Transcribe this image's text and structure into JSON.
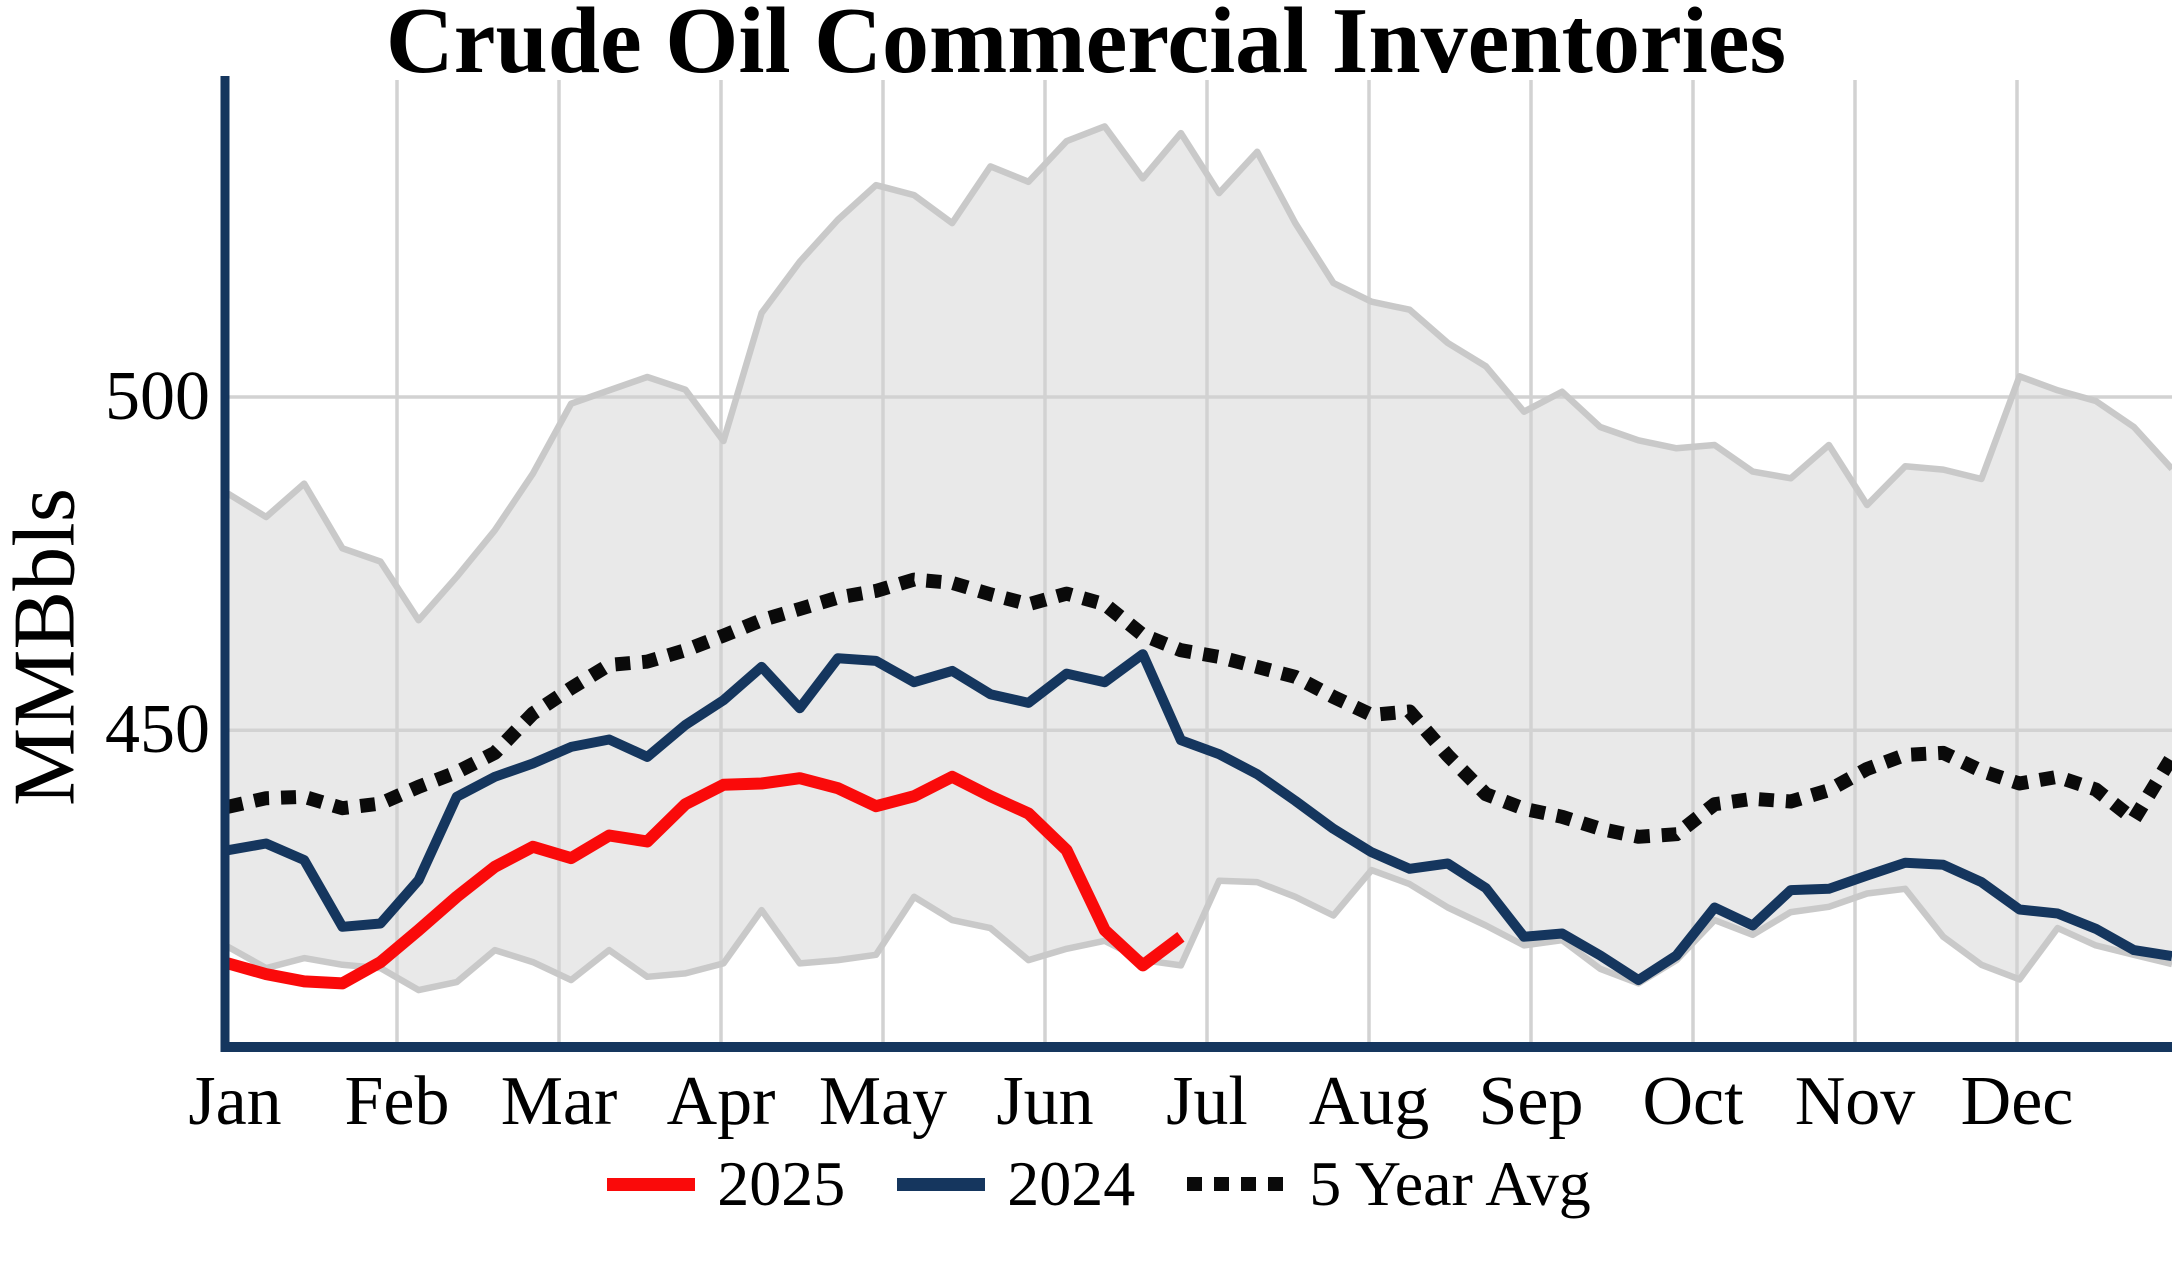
{
  "chart_data": {
    "type": "line",
    "title": "Crude Oil Commercial Inventories",
    "ylabel": "MMBbls",
    "x_unit": "weekly values, Jan through Dec",
    "x_tick_labels": [
      "Jan",
      "Feb",
      "Mar",
      "Apr",
      "May",
      "Jun",
      "Jul",
      "Aug",
      "Sep",
      "Oct",
      "Nov",
      "Dec"
    ],
    "y_ticks": [
      450,
      500
    ],
    "ylim": [
      402,
      548
    ],
    "grid": "vertical line at each month start, horizontal line at each y tick",
    "legend": [
      {
        "label": "2025",
        "color": "#fa0a0a",
        "style": "solid"
      },
      {
        "label": "2024",
        "color": "#15365e",
        "style": "solid"
      },
      {
        "label": "5 Year Avg",
        "color": "#0a0a0a",
        "style": "dotted"
      }
    ],
    "band": {
      "name": "5-year range",
      "fill": "#e9e9e9",
      "edge": "#c9c9c9",
      "top": [
        485.5,
        482,
        487,
        477.3,
        475.3,
        466.5,
        473,
        480,
        488.5,
        499,
        501,
        503,
        501.1,
        493.4,
        512.6,
        520.3,
        526.6,
        531.8,
        530.3,
        526.1,
        534.6,
        532.3,
        538.4,
        540.6,
        532.8,
        539.6,
        530.6,
        536.8,
        526.1,
        517.1,
        514.3,
        513.1,
        508.1,
        504.6,
        497.8,
        500.8,
        495.5,
        493.5,
        492.3,
        492.8,
        488.8,
        487.8,
        492.8,
        483.8,
        489.6,
        489.1,
        487.7,
        503.1,
        501,
        499.4,
        495.5,
        489.2
      ],
      "bottom": [
        417.5,
        414.3,
        415.8,
        414.8,
        414.3,
        411,
        412.2,
        417,
        415.2,
        412.5,
        417,
        413,
        413.5,
        415,
        423,
        415,
        415.5,
        416.3,
        425,
        421.5,
        420.3,
        415.5,
        417.2,
        418.4,
        415.5,
        414.7,
        427.4,
        427.2,
        425,
        422.2,
        429,
        426.9,
        423.4,
        420.7,
        417.7,
        418.5,
        414.2,
        412,
        415.5,
        421.5,
        419.3,
        422.7,
        423.5,
        425.5,
        426.2,
        419,
        414.8,
        412.6,
        420.3,
        417.7,
        416.3,
        414.9
      ]
    },
    "series": [
      {
        "name": "2025",
        "color": "#fa0a0a",
        "width": 12,
        "dash": false,
        "values": [
          415,
          413.4,
          412.3,
          412,
          415.2,
          420,
          425,
          429.5,
          432.5,
          430.8,
          434.2,
          433.3,
          438.9,
          441.8,
          442,
          442.8,
          441.3,
          438.6,
          440.1,
          443,
          440.1,
          437.5,
          432,
          420,
          414.7,
          419
        ]
      },
      {
        "name": "2024",
        "color": "#15365e",
        "width": 10,
        "dash": false,
        "values": [
          432,
          433,
          430.5,
          420.5,
          421,
          427.5,
          440,
          443,
          445,
          447.5,
          448.6,
          446,
          450.8,
          454.5,
          459.5,
          453.3,
          460.8,
          460.4,
          457.2,
          458.9,
          455.4,
          454.1,
          458.5,
          457.2,
          461.4,
          448.5,
          446.4,
          443.4,
          439.4,
          435.2,
          431.7,
          429.2,
          430,
          426.3,
          419,
          419.5,
          416.2,
          412.5,
          416.2,
          423.4,
          420.7,
          426,
          426.2,
          428.2,
          430.1,
          429.8,
          427.2,
          423.1,
          422.5,
          420.2,
          417,
          416.1
        ]
      },
      {
        "name": "5 Year Avg",
        "color": "#0a0a0a",
        "width": 14,
        "dash": true,
        "values": [
          438.5,
          439.8,
          440,
          438.3,
          439,
          441.5,
          443.7,
          446.6,
          452.5,
          456.3,
          459.8,
          460.3,
          462,
          464.2,
          466.5,
          468.2,
          469.9,
          470.9,
          472.6,
          472.1,
          470.4,
          468.9,
          470.5,
          468.9,
          464.3,
          462,
          461,
          459.5,
          458,
          455,
          452.3,
          452.8,
          446.2,
          440.4,
          438.2,
          437,
          435.2,
          434,
          434.4,
          438.9,
          439.7,
          439.3,
          441,
          444.2,
          446.3,
          446.6,
          443.9,
          442,
          443,
          441.1,
          436.6,
          446
        ]
      }
    ],
    "style": {
      "axis_color": "#15365e",
      "grid_color": "#d2d2d2",
      "background": "#ffffff"
    }
  }
}
